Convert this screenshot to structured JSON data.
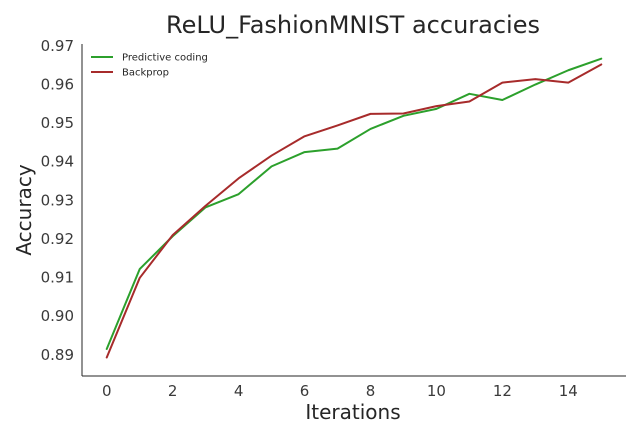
{
  "chart_data": {
    "type": "line",
    "title": "ReLU_FashionMNIST accuracies",
    "xlabel": "Iterations",
    "ylabel": "Accuracy",
    "xlim": [
      -0.75,
      15.75
    ],
    "ylim": [
      0.8845,
      0.9705
    ],
    "xticks": [
      0,
      2,
      4,
      6,
      8,
      10,
      12,
      14
    ],
    "yticks": [
      0.89,
      0.9,
      0.91,
      0.92,
      0.93,
      0.94,
      0.95,
      0.96,
      0.97
    ],
    "ytick_labels": [
      "0.89",
      "0.90",
      "0.91",
      "0.92",
      "0.93",
      "0.94",
      "0.95",
      "0.96",
      "0.97"
    ],
    "grid": false,
    "legend_position": "top-left",
    "x": [
      0,
      1,
      2,
      3,
      4,
      5,
      6,
      7,
      8,
      9,
      10,
      11,
      12,
      13,
      14,
      15
    ],
    "series": [
      {
        "name": "Predictive coding",
        "color": "#2ca02c",
        "values": [
          0.8915,
          0.9122,
          0.9207,
          0.9282,
          0.9316,
          0.9388,
          0.9425,
          0.9434,
          0.9485,
          0.9519,
          0.9537,
          0.9576,
          0.956,
          0.96,
          0.9637,
          0.9667
        ]
      },
      {
        "name": "Backprop",
        "color": "#a72b2b",
        "values": [
          0.8893,
          0.9099,
          0.921,
          0.9286,
          0.9357,
          0.9416,
          0.9466,
          0.9494,
          0.9524,
          0.9525,
          0.9544,
          0.9556,
          0.9605,
          0.9614,
          0.9605,
          0.9652
        ]
      }
    ]
  }
}
